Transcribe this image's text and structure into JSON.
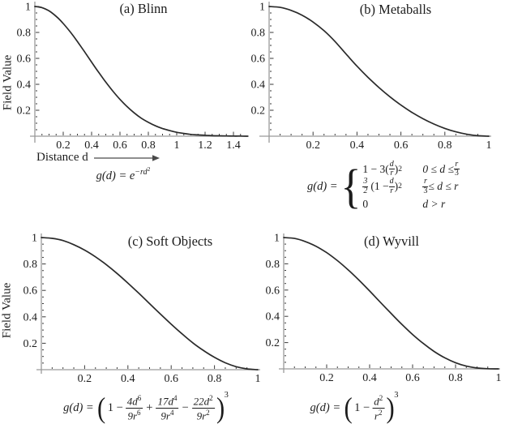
{
  "figure": {
    "background": "#ffffff",
    "axis_color": "#9a9a9a",
    "curve_color": "#2a2a2a",
    "tick_color": "#3a3a3a",
    "text_color": "#1c1c1c"
  },
  "chart_data": [
    {
      "type": "line",
      "title": "(a) Blinn",
      "xlabel": "Distance d",
      "ylabel": "Field Value",
      "formula_text": "g(d) = e^(-rd^2)",
      "xlim": [
        0,
        1.5
      ],
      "ylim": [
        0,
        1
      ],
      "x_ticks": [
        "0.2",
        "0.4",
        "0.6",
        "0.8",
        "1",
        "1.2",
        "1.4"
      ],
      "y_ticks": [
        "0.2",
        "0.4",
        "0.6",
        "0.8",
        "1"
      ],
      "x": [
        0,
        0.05,
        0.1,
        0.15,
        0.2,
        0.25,
        0.3,
        0.35,
        0.4,
        0.45,
        0.5,
        0.55,
        0.6,
        0.65,
        0.7,
        0.75,
        0.8,
        0.85,
        0.9,
        0.95,
        1,
        1.05,
        1.1,
        1.15,
        1.2,
        1.25,
        1.3,
        1.35,
        1.4,
        1.45,
        1.5
      ],
      "y": [
        1,
        0.991,
        0.966,
        0.924,
        0.869,
        0.803,
        0.73,
        0.651,
        0.571,
        0.492,
        0.417,
        0.347,
        0.284,
        0.228,
        0.18,
        0.139,
        0.107,
        0.08,
        0.059,
        0.043,
        0.03,
        0.021,
        0.014,
        0.01,
        0.007,
        0.004,
        0.003,
        0.002,
        0.001,
        0.001,
        0
      ]
    },
    {
      "type": "line",
      "title": "(b) Metaballs",
      "xlabel": "",
      "ylabel": "",
      "formula_text": "g(d) = {1 - 3(d/r)^2 for 0<=d<=r/3; (3/2)(1 - d/r)^2 for r/3<=d<=r; 0 for d>r}",
      "xlim": [
        0,
        1
      ],
      "ylim": [
        0,
        1
      ],
      "x_ticks": [
        "0.2",
        "0.4",
        "0.6",
        "0.8",
        "1"
      ],
      "y_ticks": [
        "0.2",
        "0.4",
        "0.6",
        "0.8",
        "1"
      ],
      "x": [
        0,
        0.05,
        0.1,
        0.15,
        0.2,
        0.25,
        0.3,
        0.35,
        0.4,
        0.45,
        0.5,
        0.55,
        0.6,
        0.65,
        0.7,
        0.75,
        0.8,
        0.85,
        0.9,
        0.95,
        1
      ],
      "y": [
        1,
        0.993,
        0.97,
        0.933,
        0.88,
        0.813,
        0.73,
        0.634,
        0.54,
        0.454,
        0.375,
        0.304,
        0.24,
        0.184,
        0.135,
        0.094,
        0.06,
        0.034,
        0.015,
        0.004,
        0
      ]
    },
    {
      "type": "line",
      "title": "(c) Soft Objects",
      "xlabel": "",
      "ylabel": "Field Value",
      "formula_text": "g(d) = (1 - 4d^6/9r^6 + 17d^4/9r^4 - 22d^2/9r^2)^3",
      "xlim": [
        0,
        1
      ],
      "ylim": [
        0,
        1
      ],
      "x_ticks": [
        "0.2",
        "0.4",
        "0.6",
        "0.8",
        "1"
      ],
      "y_ticks": [
        "0.2",
        "0.4",
        "0.6",
        "0.8",
        "1"
      ],
      "x": [
        0,
        0.05,
        0.1,
        0.15,
        0.2,
        0.25,
        0.3,
        0.35,
        0.4,
        0.45,
        0.5,
        0.55,
        0.6,
        0.65,
        0.7,
        0.75,
        0.8,
        0.85,
        0.9,
        0.95,
        1
      ],
      "y": [
        1,
        0.994,
        0.977,
        0.946,
        0.905,
        0.854,
        0.795,
        0.728,
        0.655,
        0.579,
        0.5,
        0.421,
        0.344,
        0.271,
        0.203,
        0.144,
        0.093,
        0.052,
        0.023,
        0.006,
        0
      ]
    },
    {
      "type": "line",
      "title": "(d) Wyvill",
      "xlabel": "",
      "ylabel": "",
      "formula_text": "g(d) = (1 - d^2/r^2)^3",
      "xlim": [
        0,
        1
      ],
      "ylim": [
        0,
        1
      ],
      "x_ticks": [
        "0.2",
        "0.4",
        "0.6",
        "0.8",
        "1"
      ],
      "y_ticks": [
        "0.2",
        "0.4",
        "0.6",
        "0.8",
        "1"
      ],
      "x": [
        0,
        0.05,
        0.1,
        0.15,
        0.2,
        0.25,
        0.3,
        0.35,
        0.4,
        0.45,
        0.5,
        0.55,
        0.6,
        0.65,
        0.7,
        0.75,
        0.8,
        0.85,
        0.9,
        0.95,
        1
      ],
      "y": [
        1,
        0.993,
        0.97,
        0.934,
        0.885,
        0.824,
        0.754,
        0.676,
        0.593,
        0.507,
        0.422,
        0.339,
        0.262,
        0.193,
        0.133,
        0.084,
        0.047,
        0.021,
        0.007,
        0.001,
        0
      ]
    }
  ],
  "formulas": {
    "blinn": {
      "prefix": "g(d) = e",
      "exp": "−rd",
      "exp_sup": "2"
    },
    "metaballs": {
      "lhs": "g(d) =",
      "r1e_pre": "1 − 3(",
      "r1e_num": "d",
      "r1e_den": "r",
      "r1e_close": ")",
      "r1e_sup": "2",
      "r1c_pre": "0 ≤ d ≤ ",
      "r1c_num": "r",
      "r1c_den": "3",
      "r2e_num": "3",
      "r2e_den": "2",
      "r2e_mid": "(1 − ",
      "r2e_num2": "d",
      "r2e_den2": "r",
      "r2e_close": ")",
      "r2e_sup": "2",
      "r2c_num": "r",
      "r2c_den": "3",
      "r2c_post": " ≤ d ≤ r",
      "r3e": "0",
      "r3c": "d > r"
    },
    "soft": {
      "lhs": "g(d) =",
      "open": "(",
      "lead": "1 −",
      "f1n": "4d",
      "f1ns": "6",
      "f1d": "9r",
      "f1ds": "6",
      "op1": "+",
      "f2n": "17d",
      "f2ns": "4",
      "f2d": "9r",
      "f2ds": "4",
      "op2": "−",
      "f3n": "22d",
      "f3ns": "2",
      "f3d": "9r",
      "f3ds": "2",
      "close": ")",
      "power": "3"
    },
    "wyvill": {
      "lhs": "g(d) =",
      "open": "(",
      "lead": "1 −",
      "f1n": "d",
      "f1ns": "2",
      "f1d": "r",
      "f1ds": "2",
      "close": ")",
      "power": "3"
    }
  }
}
